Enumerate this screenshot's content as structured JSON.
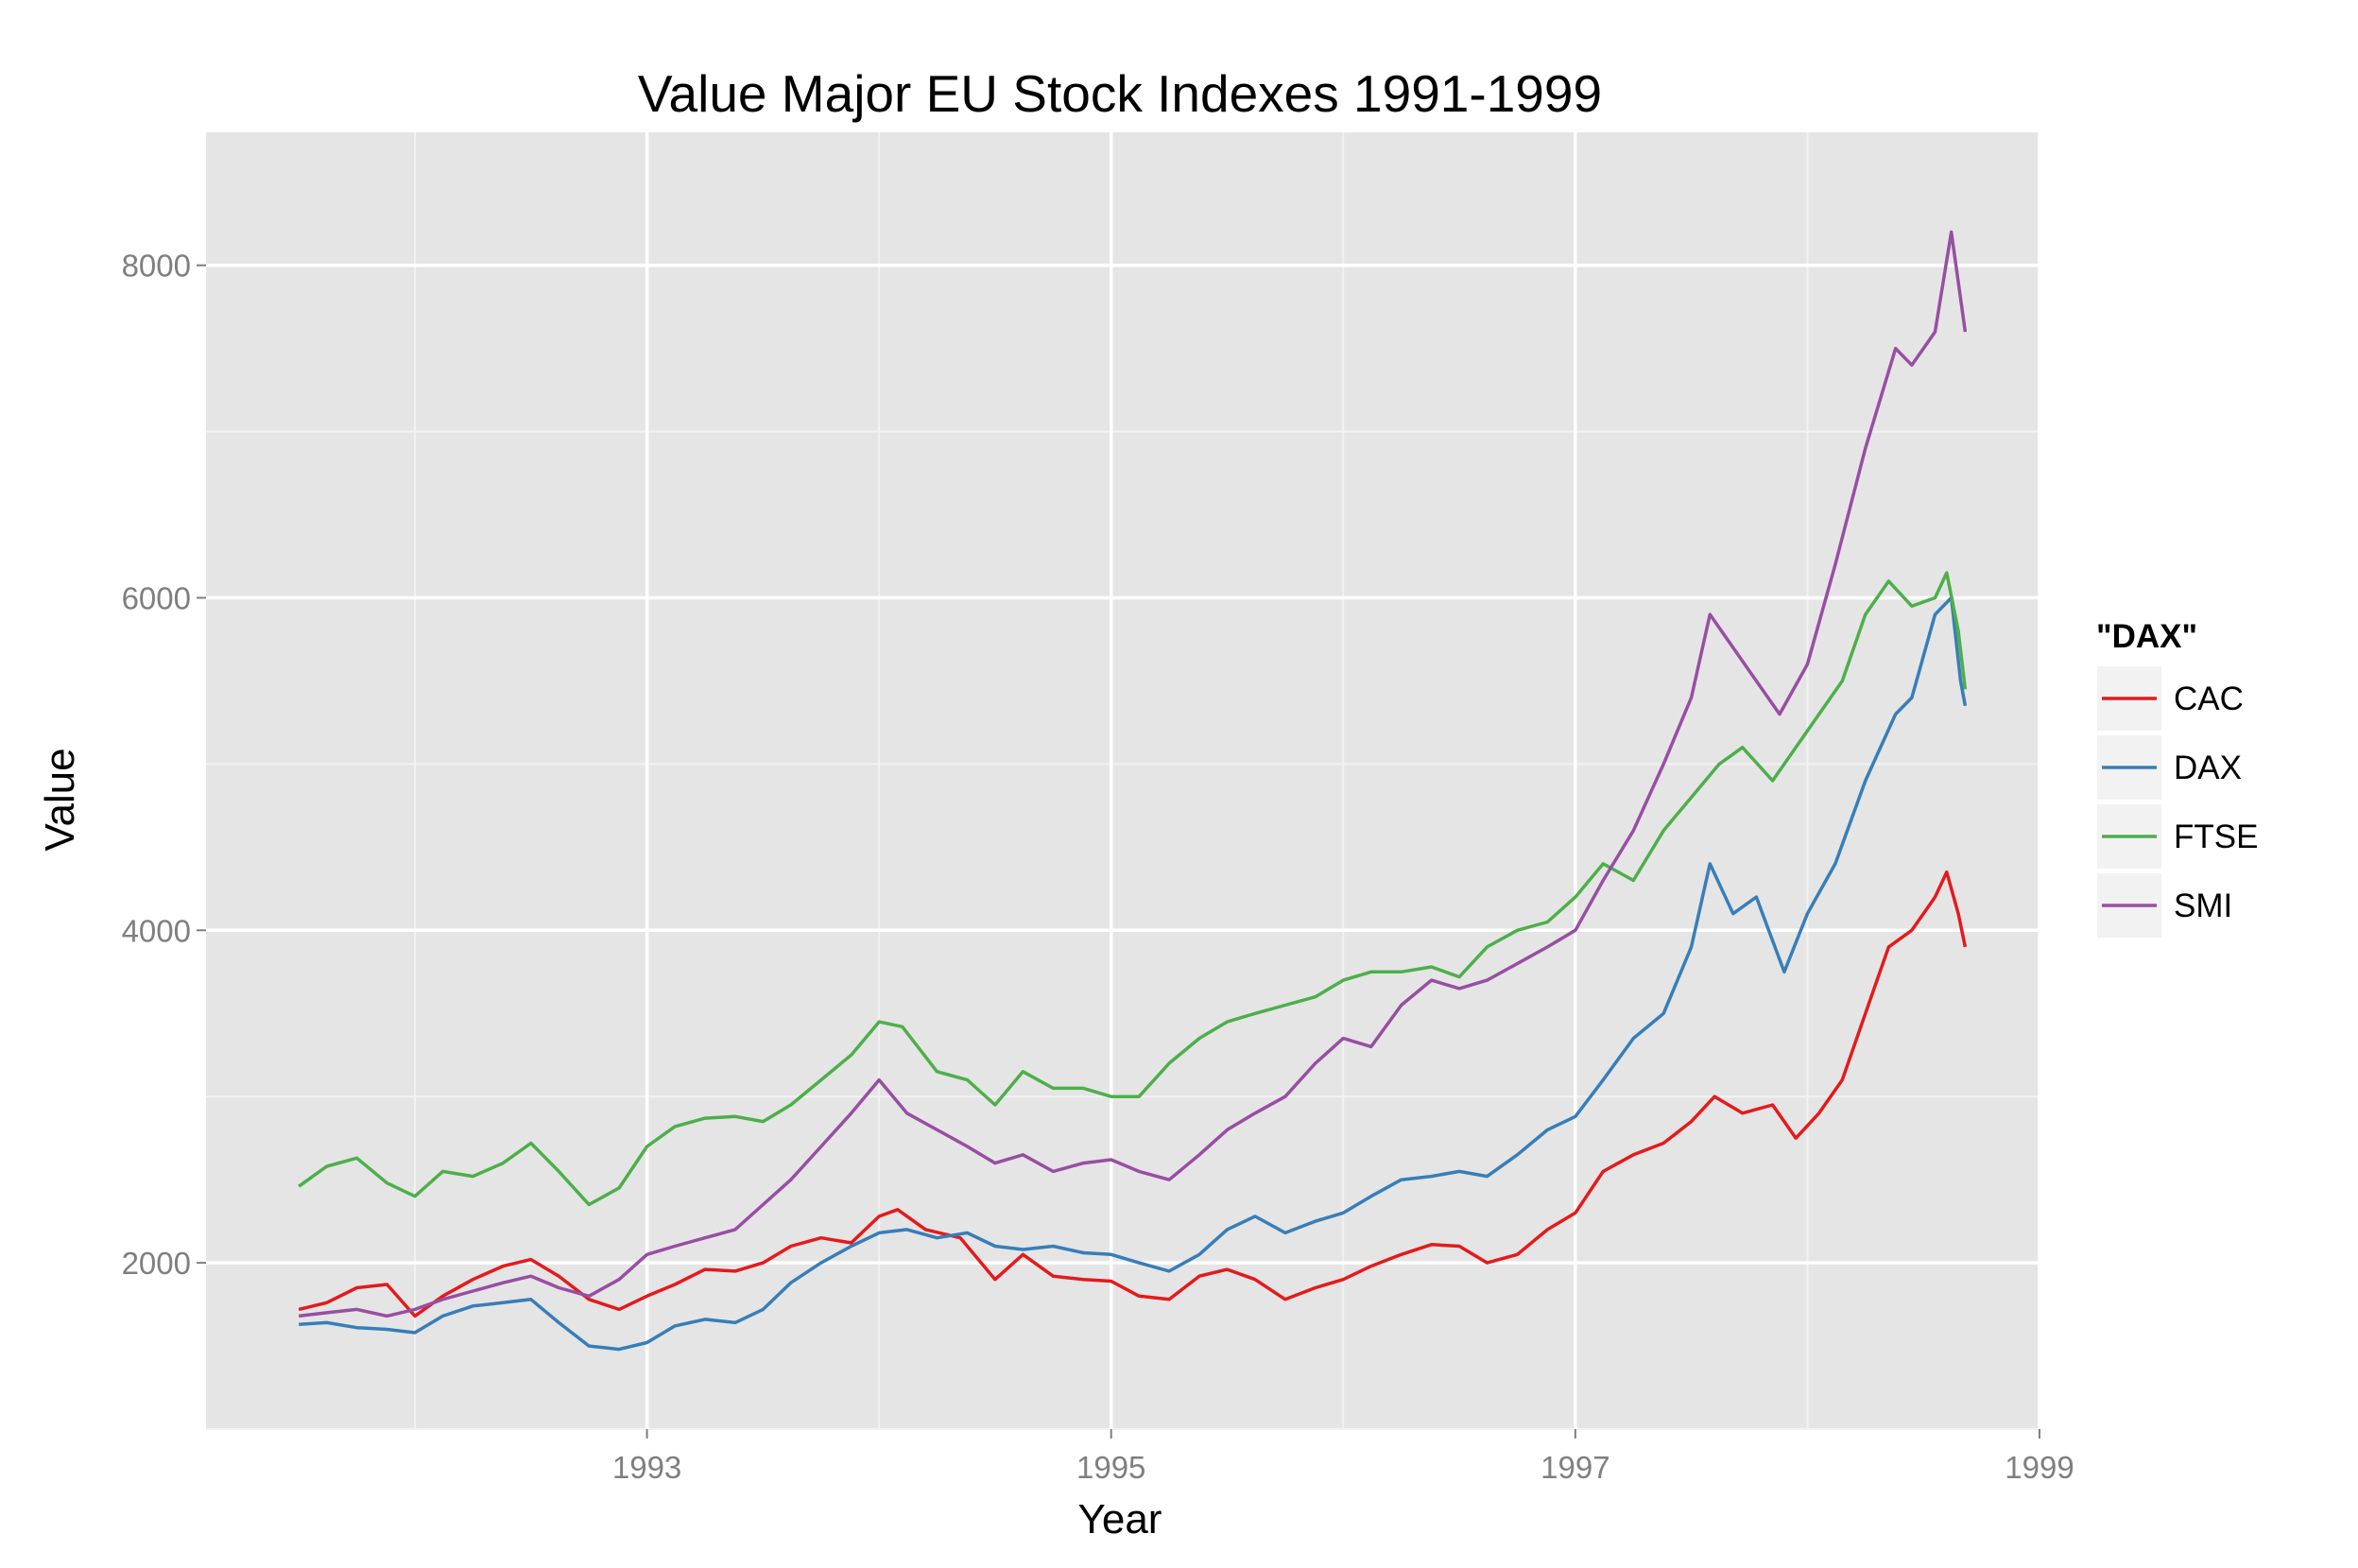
{
  "chart_data": {
    "type": "line",
    "title": "Value Major EU Stock Indexes 1991-1999",
    "xlabel": "Year",
    "ylabel": "Value",
    "xlim": [
      1991.1,
      1999.0
    ],
    "ylim": [
      1000,
      8800
    ],
    "x_ticks": [
      1993,
      1995,
      1997,
      1999
    ],
    "x_tick_labels": [
      "1993",
      "1995",
      "1997",
      "1999"
    ],
    "y_ticks": [
      2000,
      4000,
      6000,
      8000
    ],
    "y_tick_labels": [
      "2000",
      "4000",
      "6000",
      "8000"
    ],
    "x_minor_ticks": [
      1992,
      1994,
      1996,
      1998
    ],
    "y_minor_ticks": [
      1000,
      3000,
      5000,
      7000
    ],
    "grid": true,
    "background": "#e5e5e5",
    "legend": {
      "title": "\"DAX\"",
      "position": "right"
    },
    "series": [
      {
        "name": "CAC",
        "color": "#e41a1c",
        "points": [
          [
            1991.5,
            1720
          ],
          [
            1991.62,
            1760
          ],
          [
            1991.75,
            1850
          ],
          [
            1991.88,
            1870
          ],
          [
            1992.0,
            1680
          ],
          [
            1992.12,
            1800
          ],
          [
            1992.25,
            1900
          ],
          [
            1992.38,
            1980
          ],
          [
            1992.5,
            2020
          ],
          [
            1992.62,
            1920
          ],
          [
            1992.75,
            1780
          ],
          [
            1992.88,
            1720
          ],
          [
            1993.0,
            1800
          ],
          [
            1993.12,
            1870
          ],
          [
            1993.25,
            1960
          ],
          [
            1993.38,
            1950
          ],
          [
            1993.5,
            2000
          ],
          [
            1993.62,
            2100
          ],
          [
            1993.75,
            2150
          ],
          [
            1993.88,
            2120
          ],
          [
            1994.0,
            2280
          ],
          [
            1994.08,
            2320
          ],
          [
            1994.2,
            2200
          ],
          [
            1994.35,
            2150
          ],
          [
            1994.5,
            1900
          ],
          [
            1994.62,
            2050
          ],
          [
            1994.75,
            1920
          ],
          [
            1994.88,
            1900
          ],
          [
            1995.0,
            1890
          ],
          [
            1995.12,
            1800
          ],
          [
            1995.25,
            1780
          ],
          [
            1995.38,
            1920
          ],
          [
            1995.5,
            1960
          ],
          [
            1995.62,
            1900
          ],
          [
            1995.75,
            1780
          ],
          [
            1995.88,
            1850
          ],
          [
            1996.0,
            1900
          ],
          [
            1996.12,
            1980
          ],
          [
            1996.25,
            2050
          ],
          [
            1996.38,
            2110
          ],
          [
            1996.5,
            2100
          ],
          [
            1996.62,
            2000
          ],
          [
            1996.75,
            2050
          ],
          [
            1996.88,
            2200
          ],
          [
            1997.0,
            2300
          ],
          [
            1997.12,
            2550
          ],
          [
            1997.25,
            2650
          ],
          [
            1997.38,
            2720
          ],
          [
            1997.5,
            2850
          ],
          [
            1997.6,
            3000
          ],
          [
            1997.72,
            2900
          ],
          [
            1997.85,
            2950
          ],
          [
            1997.95,
            2750
          ],
          [
            1998.05,
            2900
          ],
          [
            1998.15,
            3100
          ],
          [
            1998.25,
            3500
          ],
          [
            1998.35,
            3900
          ],
          [
            1998.45,
            4000
          ],
          [
            1998.55,
            4200
          ],
          [
            1998.6,
            4350
          ],
          [
            1998.65,
            4100
          ],
          [
            1998.68,
            3900
          ]
        ]
      },
      {
        "name": "DAX",
        "color": "#377eb8",
        "points": [
          [
            1991.5,
            1630
          ],
          [
            1991.62,
            1640
          ],
          [
            1991.75,
            1610
          ],
          [
            1991.88,
            1600
          ],
          [
            1992.0,
            1580
          ],
          [
            1992.12,
            1680
          ],
          [
            1992.25,
            1740
          ],
          [
            1992.38,
            1760
          ],
          [
            1992.5,
            1780
          ],
          [
            1992.62,
            1640
          ],
          [
            1992.75,
            1500
          ],
          [
            1992.88,
            1480
          ],
          [
            1993.0,
            1520
          ],
          [
            1993.12,
            1620
          ],
          [
            1993.25,
            1660
          ],
          [
            1993.38,
            1640
          ],
          [
            1993.5,
            1720
          ],
          [
            1993.62,
            1880
          ],
          [
            1993.75,
            2000
          ],
          [
            1993.88,
            2100
          ],
          [
            1994.0,
            2180
          ],
          [
            1994.12,
            2200
          ],
          [
            1994.25,
            2150
          ],
          [
            1994.38,
            2180
          ],
          [
            1994.5,
            2100
          ],
          [
            1994.62,
            2080
          ],
          [
            1994.75,
            2100
          ],
          [
            1994.88,
            2060
          ],
          [
            1995.0,
            2050
          ],
          [
            1995.12,
            2000
          ],
          [
            1995.25,
            1950
          ],
          [
            1995.38,
            2050
          ],
          [
            1995.5,
            2200
          ],
          [
            1995.62,
            2280
          ],
          [
            1995.75,
            2180
          ],
          [
            1995.88,
            2250
          ],
          [
            1996.0,
            2300
          ],
          [
            1996.12,
            2400
          ],
          [
            1996.25,
            2500
          ],
          [
            1996.38,
            2520
          ],
          [
            1996.5,
            2550
          ],
          [
            1996.62,
            2520
          ],
          [
            1996.75,
            2650
          ],
          [
            1996.88,
            2800
          ],
          [
            1997.0,
            2880
          ],
          [
            1997.12,
            3100
          ],
          [
            1997.25,
            3350
          ],
          [
            1997.38,
            3500
          ],
          [
            1997.5,
            3900
          ],
          [
            1997.58,
            4400
          ],
          [
            1997.68,
            4100
          ],
          [
            1997.78,
            4200
          ],
          [
            1997.9,
            3750
          ],
          [
            1998.0,
            4100
          ],
          [
            1998.12,
            4400
          ],
          [
            1998.25,
            4900
          ],
          [
            1998.38,
            5300
          ],
          [
            1998.45,
            5400
          ],
          [
            1998.55,
            5900
          ],
          [
            1998.62,
            6000
          ],
          [
            1998.66,
            5500
          ],
          [
            1998.68,
            5350
          ]
        ]
      },
      {
        "name": "FTSE",
        "color": "#4daf4a",
        "points": [
          [
            1991.5,
            2460
          ],
          [
            1991.62,
            2580
          ],
          [
            1991.75,
            2630
          ],
          [
            1991.88,
            2480
          ],
          [
            1992.0,
            2400
          ],
          [
            1992.12,
            2550
          ],
          [
            1992.25,
            2520
          ],
          [
            1992.38,
            2600
          ],
          [
            1992.5,
            2720
          ],
          [
            1992.62,
            2550
          ],
          [
            1992.75,
            2350
          ],
          [
            1992.88,
            2450
          ],
          [
            1993.0,
            2700
          ],
          [
            1993.12,
            2820
          ],
          [
            1993.25,
            2870
          ],
          [
            1993.38,
            2880
          ],
          [
            1993.5,
            2850
          ],
          [
            1993.62,
            2950
          ],
          [
            1993.75,
            3100
          ],
          [
            1993.88,
            3250
          ],
          [
            1994.0,
            3450
          ],
          [
            1994.1,
            3420
          ],
          [
            1994.25,
            3150
          ],
          [
            1994.38,
            3100
          ],
          [
            1994.5,
            2950
          ],
          [
            1994.62,
            3150
          ],
          [
            1994.75,
            3050
          ],
          [
            1994.88,
            3050
          ],
          [
            1995.0,
            3000
          ],
          [
            1995.12,
            3000
          ],
          [
            1995.25,
            3200
          ],
          [
            1995.38,
            3350
          ],
          [
            1995.5,
            3450
          ],
          [
            1995.62,
            3500
          ],
          [
            1995.75,
            3550
          ],
          [
            1995.88,
            3600
          ],
          [
            1996.0,
            3700
          ],
          [
            1996.12,
            3750
          ],
          [
            1996.25,
            3750
          ],
          [
            1996.38,
            3780
          ],
          [
            1996.5,
            3720
          ],
          [
            1996.62,
            3900
          ],
          [
            1996.75,
            4000
          ],
          [
            1996.88,
            4050
          ],
          [
            1997.0,
            4200
          ],
          [
            1997.12,
            4400
          ],
          [
            1997.25,
            4300
          ],
          [
            1997.38,
            4600
          ],
          [
            1997.5,
            4800
          ],
          [
            1997.62,
            5000
          ],
          [
            1997.72,
            5100
          ],
          [
            1997.85,
            4900
          ],
          [
            1997.95,
            5100
          ],
          [
            1998.05,
            5300
          ],
          [
            1998.15,
            5500
          ],
          [
            1998.25,
            5900
          ],
          [
            1998.35,
            6100
          ],
          [
            1998.45,
            5950
          ],
          [
            1998.55,
            6000
          ],
          [
            1998.6,
            6150
          ],
          [
            1998.65,
            5800
          ],
          [
            1998.68,
            5450
          ]
        ]
      },
      {
        "name": "SMI",
        "color": "#984ea3",
        "points": [
          [
            1991.5,
            1680
          ],
          [
            1991.62,
            1700
          ],
          [
            1991.75,
            1720
          ],
          [
            1991.88,
            1680
          ],
          [
            1992.0,
            1720
          ],
          [
            1992.12,
            1780
          ],
          [
            1992.25,
            1830
          ],
          [
            1992.38,
            1880
          ],
          [
            1992.5,
            1920
          ],
          [
            1992.62,
            1850
          ],
          [
            1992.75,
            1800
          ],
          [
            1992.88,
            1900
          ],
          [
            1993.0,
            2050
          ],
          [
            1993.12,
            2100
          ],
          [
            1993.25,
            2150
          ],
          [
            1993.38,
            2200
          ],
          [
            1993.5,
            2350
          ],
          [
            1993.62,
            2500
          ],
          [
            1993.75,
            2700
          ],
          [
            1993.88,
            2900
          ],
          [
            1994.0,
            3100
          ],
          [
            1994.12,
            2900
          ],
          [
            1994.25,
            2800
          ],
          [
            1994.38,
            2700
          ],
          [
            1994.5,
            2600
          ],
          [
            1994.62,
            2650
          ],
          [
            1994.75,
            2550
          ],
          [
            1994.88,
            2600
          ],
          [
            1995.0,
            2620
          ],
          [
            1995.12,
            2550
          ],
          [
            1995.25,
            2500
          ],
          [
            1995.38,
            2650
          ],
          [
            1995.5,
            2800
          ],
          [
            1995.62,
            2900
          ],
          [
            1995.75,
            3000
          ],
          [
            1995.88,
            3200
          ],
          [
            1996.0,
            3350
          ],
          [
            1996.12,
            3300
          ],
          [
            1996.25,
            3550
          ],
          [
            1996.38,
            3700
          ],
          [
            1996.5,
            3650
          ],
          [
            1996.62,
            3700
          ],
          [
            1996.75,
            3800
          ],
          [
            1996.88,
            3900
          ],
          [
            1997.0,
            4000
          ],
          [
            1997.12,
            4300
          ],
          [
            1997.25,
            4600
          ],
          [
            1997.38,
            5000
          ],
          [
            1997.5,
            5400
          ],
          [
            1997.58,
            5900
          ],
          [
            1997.68,
            5700
          ],
          [
            1997.78,
            5500
          ],
          [
            1997.88,
            5300
          ],
          [
            1998.0,
            5600
          ],
          [
            1998.12,
            6200
          ],
          [
            1998.25,
            6900
          ],
          [
            1998.38,
            7500
          ],
          [
            1998.45,
            7400
          ],
          [
            1998.55,
            7600
          ],
          [
            1998.62,
            8200
          ],
          [
            1998.66,
            7800
          ],
          [
            1998.68,
            7600
          ]
        ]
      }
    ]
  }
}
